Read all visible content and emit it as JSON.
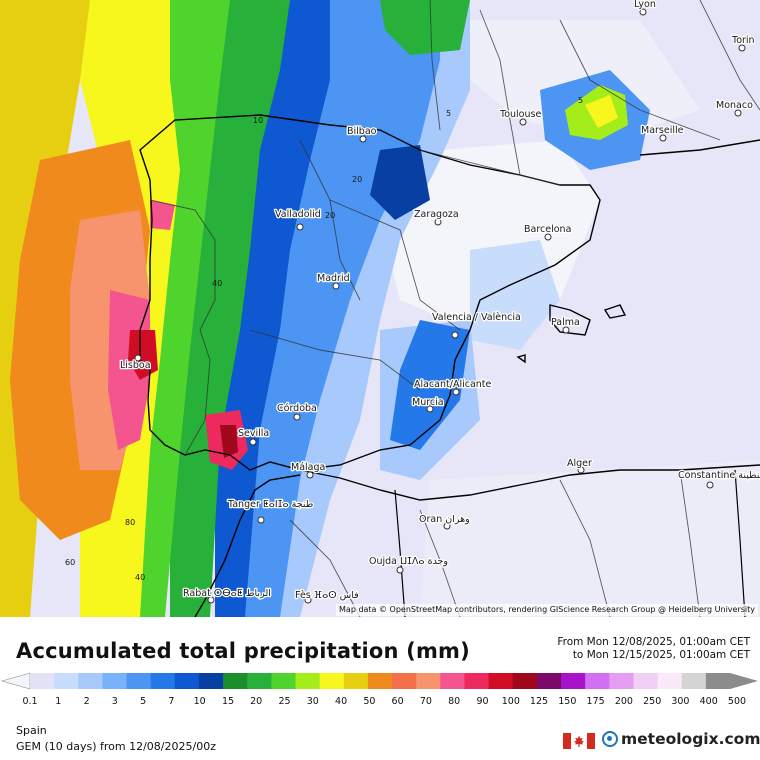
{
  "map": {
    "attribution": "Map data © OpenStreetMap contributors, rendering GIScience Research Group @ Heidelberg University",
    "cities": [
      "Lyon",
      "Torin",
      "Monaco",
      "Toulouse",
      "Marseille",
      "Bilbao",
      "Zaragoza",
      "Barcelona",
      "Valladolid",
      "Madrid",
      "Valencia / València",
      "Palma",
      "Lisboa",
      "Córdoba",
      "Alacant/Alicante",
      "Murcia",
      "Sevilla",
      "Málaga",
      "Alger",
      "Constantine قسنطينة",
      "Tanger ⵟⴰⵏⵊⴰ طنجة",
      "Oran وهران",
      "Oujda ⵡⵊⴷⴰ وجدة",
      "Rabat ⵔⴱⴰⵟ الرباط",
      "Fès ⴼⴰⵙ فاس"
    ],
    "contour_labels": [
      "5",
      "5",
      "10",
      "20",
      "20",
      "40",
      "80",
      "60",
      "40"
    ]
  },
  "header": {
    "title": "Accumulated total precipitation (mm)",
    "from": "From Mon 12/08/2025, 01:00am CET",
    "to": "to Mon 12/15/2025, 01:00am CET"
  },
  "legend": {
    "ticks": [
      "0.1",
      "1",
      "2",
      "3",
      "5",
      "7",
      "10",
      "15",
      "20",
      "25",
      "30",
      "40",
      "50",
      "60",
      "70",
      "80",
      "90",
      "100",
      "125",
      "150",
      "175",
      "200",
      "250",
      "300",
      "400",
      "500"
    ],
    "colors": [
      "#e2e2f7",
      "#c8dcfc",
      "#a7c9fb",
      "#78b2f9",
      "#4c95f3",
      "#2578e8",
      "#0e58d2",
      "#073fa3",
      "#1c8f2c",
      "#27b03a",
      "#4fd42e",
      "#a4ed1a",
      "#f7f71d",
      "#e5cf10",
      "#f08a1d",
      "#f4704a",
      "#f7946e",
      "#f4558f",
      "#ec2a5d",
      "#d00d24",
      "#a0061c",
      "#7b0a6a",
      "#a813c9",
      "#d36ff2",
      "#e59df2",
      "#f0d0f5",
      "#f9e9fb",
      "#d4d4d4",
      "#8c8c8c"
    ]
  },
  "footer": {
    "region": "Spain",
    "model": "GEM (10 days) from 12/08/2025/00z",
    "brand": "meteologix.com"
  }
}
